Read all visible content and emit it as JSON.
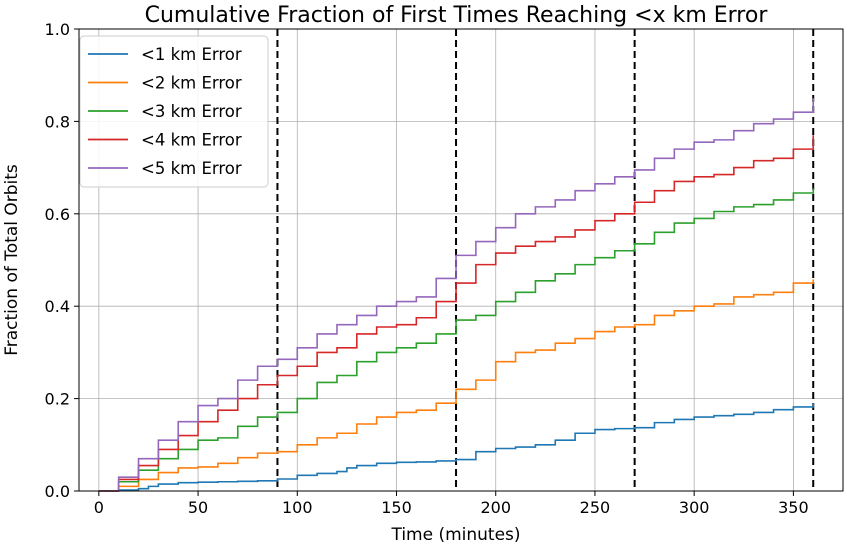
{
  "chart_data": {
    "type": "line",
    "step": true,
    "title": "Cumulative Fraction of First Times Reaching <x km Error",
    "xlabel": "Time (minutes)",
    "ylabel": "Fraction of Total Orbits",
    "xlim": [
      -10,
      375
    ],
    "ylim": [
      0,
      1.0
    ],
    "xticks": [
      0,
      50,
      100,
      150,
      200,
      250,
      300,
      350
    ],
    "yticks": [
      0.0,
      0.2,
      0.4,
      0.6,
      0.8,
      1.0
    ],
    "xtick_labels": [
      "0",
      "50",
      "100",
      "150",
      "200",
      "250",
      "300",
      "350"
    ],
    "ytick_labels": [
      "0.0",
      "0.2",
      "0.4",
      "0.6",
      "0.8",
      "1.0"
    ],
    "grid": true,
    "legend_position": "top-left",
    "vlines": {
      "x": [
        90,
        180,
        270,
        360
      ],
      "style": "dashed",
      "color": "#000000"
    },
    "series": [
      {
        "name": "<1 km Error",
        "color": "#1f77b4",
        "x": [
          0,
          10,
          20,
          25,
          30,
          40,
          50,
          60,
          70,
          80,
          90,
          100,
          110,
          120,
          125,
          130,
          140,
          150,
          160,
          170,
          180,
          190,
          200,
          210,
          220,
          230,
          240,
          250,
          260,
          270,
          280,
          290,
          300,
          310,
          320,
          330,
          340,
          350,
          360
        ],
        "y": [
          0.0,
          0.002,
          0.005,
          0.01,
          0.015,
          0.018,
          0.019,
          0.02,
          0.021,
          0.022,
          0.026,
          0.034,
          0.038,
          0.042,
          0.05,
          0.055,
          0.06,
          0.062,
          0.063,
          0.065,
          0.068,
          0.085,
          0.092,
          0.095,
          0.1,
          0.11,
          0.125,
          0.133,
          0.135,
          0.137,
          0.148,
          0.155,
          0.16,
          0.163,
          0.166,
          0.17,
          0.176,
          0.182,
          0.19
        ]
      },
      {
        "name": "<2 km Error",
        "color": "#ff7f0e",
        "x": [
          0,
          10,
          20,
          30,
          40,
          50,
          60,
          70,
          80,
          90,
          100,
          110,
          120,
          130,
          140,
          150,
          160,
          170,
          180,
          190,
          200,
          210,
          220,
          230,
          240,
          250,
          260,
          270,
          280,
          290,
          300,
          310,
          320,
          330,
          340,
          350,
          360
        ],
        "y": [
          0.0,
          0.01,
          0.025,
          0.04,
          0.05,
          0.052,
          0.06,
          0.072,
          0.082,
          0.085,
          0.1,
          0.115,
          0.125,
          0.145,
          0.16,
          0.17,
          0.175,
          0.19,
          0.22,
          0.24,
          0.28,
          0.3,
          0.305,
          0.32,
          0.33,
          0.345,
          0.355,
          0.36,
          0.38,
          0.39,
          0.4,
          0.405,
          0.42,
          0.425,
          0.43,
          0.45,
          0.458
        ]
      },
      {
        "name": "<3 km Error",
        "color": "#2ca02c",
        "x": [
          0,
          10,
          20,
          30,
          40,
          50,
          60,
          70,
          80,
          90,
          100,
          110,
          120,
          130,
          140,
          150,
          160,
          170,
          180,
          190,
          200,
          210,
          220,
          230,
          240,
          250,
          260,
          270,
          280,
          290,
          300,
          310,
          320,
          330,
          340,
          350,
          360
        ],
        "y": [
          0.0,
          0.02,
          0.045,
          0.07,
          0.09,
          0.11,
          0.115,
          0.14,
          0.16,
          0.17,
          0.2,
          0.235,
          0.25,
          0.28,
          0.3,
          0.31,
          0.32,
          0.34,
          0.37,
          0.38,
          0.41,
          0.43,
          0.455,
          0.47,
          0.49,
          0.505,
          0.52,
          0.535,
          0.56,
          0.58,
          0.59,
          0.605,
          0.615,
          0.62,
          0.63,
          0.645,
          0.655
        ]
      },
      {
        "name": "<4 km Error",
        "color": "#d62728",
        "x": [
          0,
          10,
          20,
          30,
          40,
          50,
          60,
          70,
          80,
          90,
          100,
          110,
          120,
          130,
          140,
          150,
          160,
          170,
          180,
          190,
          200,
          210,
          220,
          230,
          240,
          250,
          260,
          270,
          280,
          290,
          300,
          310,
          320,
          330,
          340,
          350,
          360
        ],
        "y": [
          0.0,
          0.025,
          0.055,
          0.09,
          0.12,
          0.15,
          0.175,
          0.2,
          0.23,
          0.25,
          0.27,
          0.3,
          0.31,
          0.34,
          0.355,
          0.36,
          0.375,
          0.41,
          0.45,
          0.49,
          0.515,
          0.53,
          0.54,
          0.55,
          0.565,
          0.585,
          0.6,
          0.625,
          0.65,
          0.67,
          0.68,
          0.685,
          0.7,
          0.715,
          0.72,
          0.74,
          0.77
        ]
      },
      {
        "name": "<5 km Error",
        "color": "#9467bd",
        "x": [
          0,
          10,
          20,
          30,
          40,
          50,
          60,
          70,
          80,
          90,
          100,
          110,
          120,
          130,
          140,
          150,
          160,
          170,
          180,
          190,
          200,
          210,
          220,
          230,
          240,
          250,
          260,
          270,
          280,
          290,
          300,
          310,
          320,
          330,
          340,
          350,
          360
        ],
        "y": [
          0.0,
          0.03,
          0.07,
          0.11,
          0.15,
          0.185,
          0.2,
          0.24,
          0.27,
          0.285,
          0.31,
          0.34,
          0.36,
          0.38,
          0.4,
          0.41,
          0.42,
          0.46,
          0.51,
          0.54,
          0.57,
          0.6,
          0.615,
          0.63,
          0.65,
          0.665,
          0.68,
          0.695,
          0.72,
          0.74,
          0.755,
          0.76,
          0.78,
          0.795,
          0.805,
          0.82,
          0.85
        ]
      }
    ]
  }
}
